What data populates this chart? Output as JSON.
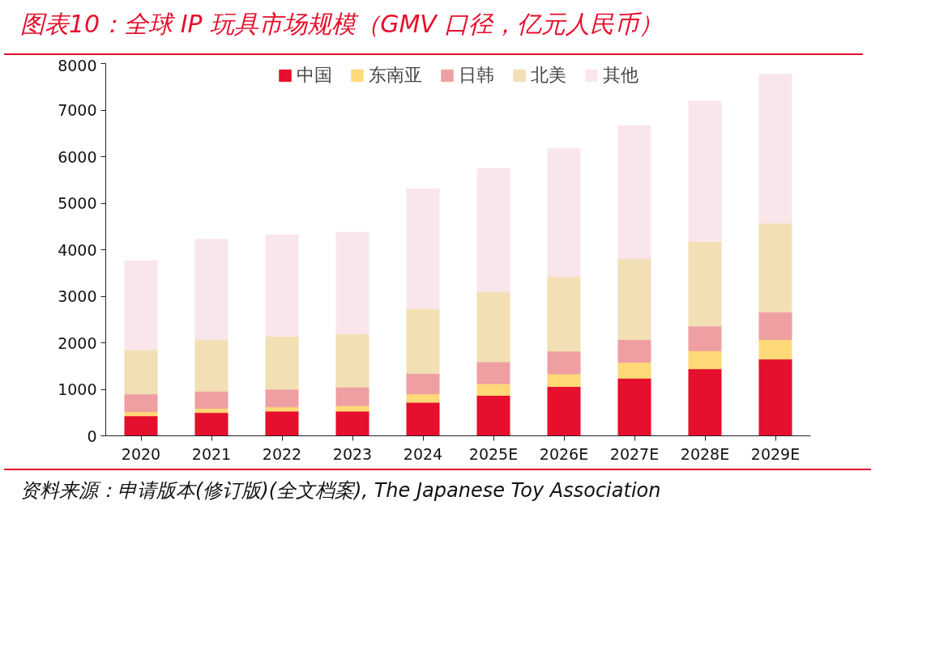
{
  "chart_data": {
    "type": "bar",
    "title": "图表10：全球 IP 玩具市场规模（GMV 口径，亿元人民币）",
    "annotations": [
      "资料来源：申请版本(修订版)(全文档案), The Japanese Toy Association"
    ],
    "categories": [
      "2020",
      "2021",
      "2022",
      "2023",
      "2024",
      "2025E",
      "2026E",
      "2027E",
      "2028E",
      "2029E"
    ],
    "stacked": true,
    "series": [
      {
        "name": "中国",
        "color": "#e60f2d",
        "values": [
          430,
          500,
          530,
          530,
          720,
          870,
          1060,
          1240,
          1440,
          1650
        ]
      },
      {
        "name": "东南亚",
        "color": "#ffd978",
        "values": [
          90,
          90,
          90,
          120,
          180,
          250,
          270,
          340,
          390,
          420
        ]
      },
      {
        "name": "日韩",
        "color": "#ef9fa2",
        "values": [
          380,
          370,
          380,
          400,
          440,
          470,
          490,
          490,
          530,
          590
        ]
      },
      {
        "name": "北美",
        "color": "#f2dfb4",
        "values": [
          950,
          1100,
          1140,
          1140,
          1390,
          1500,
          1600,
          1740,
          1820,
          1910
        ]
      },
      {
        "name": "其他",
        "color": "#f9e6ea",
        "values": [
          1910,
          2160,
          2180,
          2180,
          2580,
          2650,
          2750,
          2850,
          3010,
          3200
        ]
      }
    ],
    "ylim": [
      0,
      8000
    ],
    "yticks": [
      0,
      1000,
      2000,
      3000,
      4000,
      5000,
      6000,
      7000,
      8000
    ],
    "grid": false,
    "legend": "top"
  }
}
